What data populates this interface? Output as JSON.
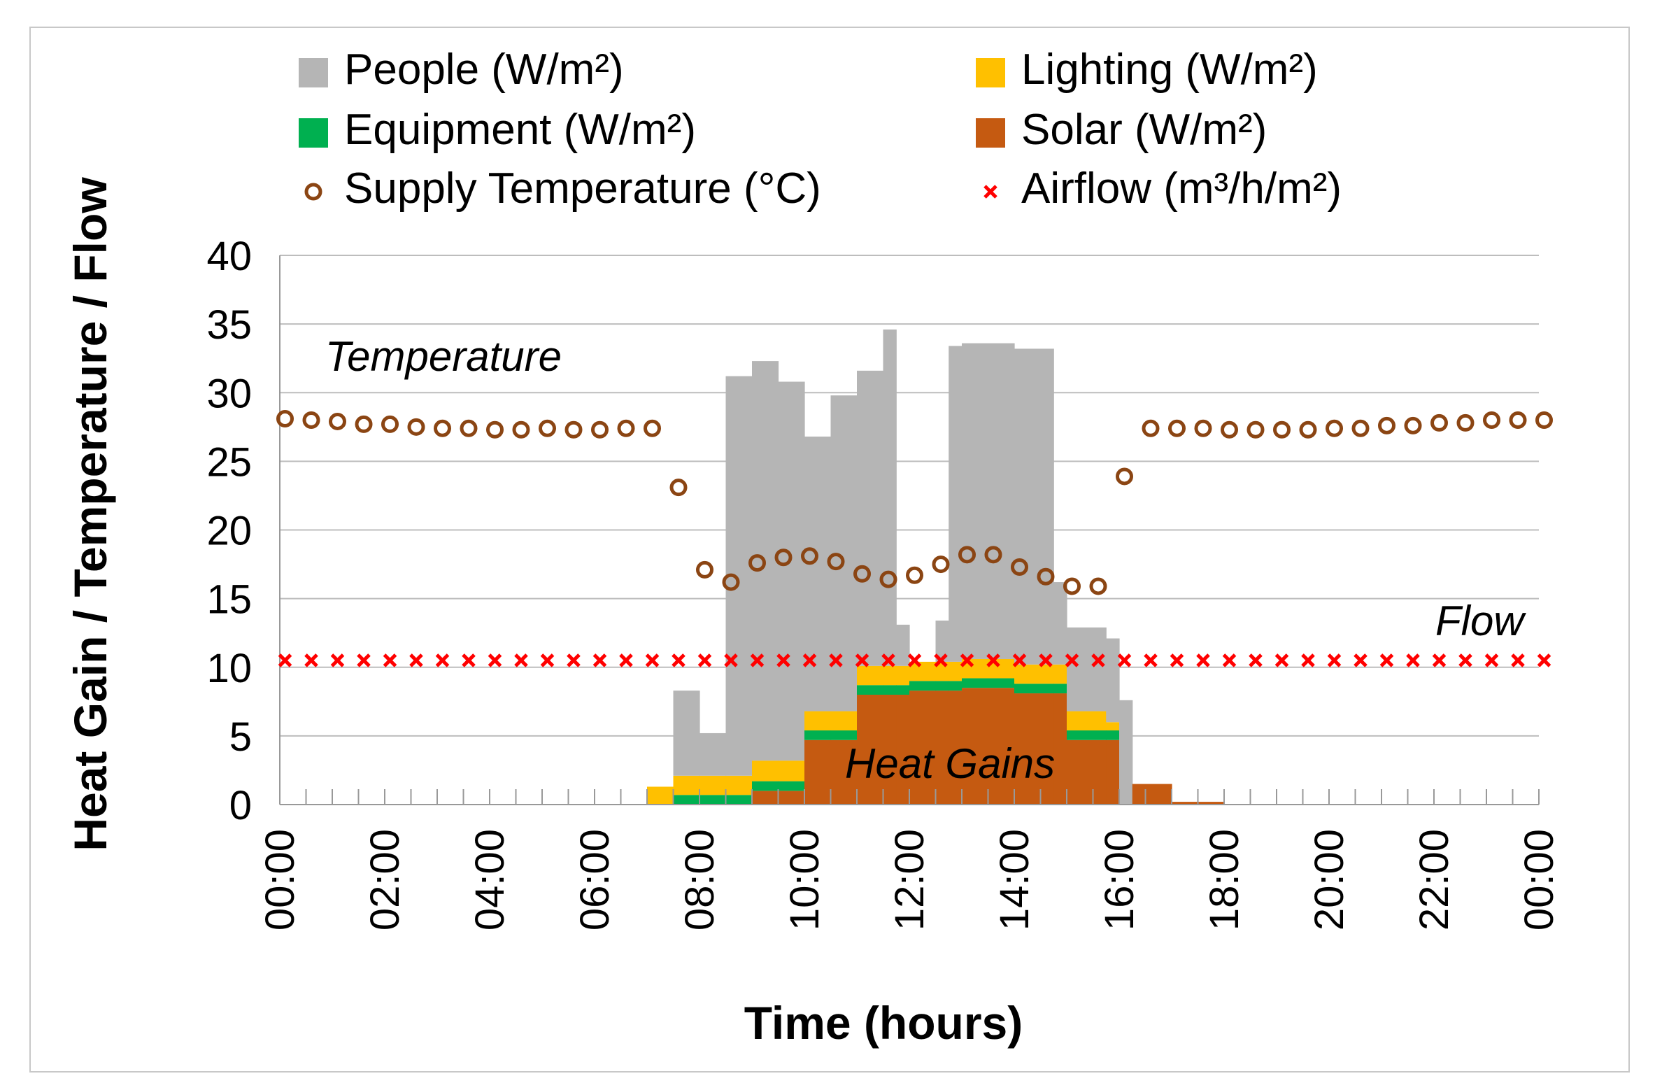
{
  "chart_data": {
    "type": "bar",
    "xlabel": "Time (hours)",
    "ylabel": "Heat Gain / Temperature / Flow",
    "ylim": [
      0,
      40
    ],
    "yticks": [
      "0",
      "5",
      "10",
      "15",
      "20",
      "25",
      "30",
      "35",
      "40"
    ],
    "xlim": [
      0,
      24
    ],
    "xtick_labels": [
      "00:00",
      "02:00",
      "04:00",
      "06:00",
      "08:00",
      "10:00",
      "12:00",
      "14:00",
      "16:00",
      "18:00",
      "20:00",
      "22:00",
      "00:00"
    ],
    "grid": "horizontal",
    "legend_placement": "top",
    "colors": {
      "people": "#b5b5b5",
      "lighting": "#ffc000",
      "equipment": "#00b050",
      "solar": "#c55a11",
      "temperature": "#8b4513",
      "airflow": "#ff0000"
    },
    "legend": [
      {
        "key": "people",
        "label": "People (W/m²)",
        "marker": "square"
      },
      {
        "key": "lighting",
        "label": "Lighting (W/m²)",
        "marker": "square"
      },
      {
        "key": "equipment",
        "label": "Equipment (W/m²)",
        "marker": "square"
      },
      {
        "key": "solar",
        "label": "Solar (W/m²)",
        "marker": "square"
      },
      {
        "key": "temperature",
        "label": "Supply Temperature (°C)",
        "marker": "circle"
      },
      {
        "key": "airflow",
        "label": "Airflow (m³/h/m²)",
        "marker": "cross"
      }
    ],
    "annotations": {
      "temperature": "Temperature",
      "flow": "Flow",
      "gains": "Heat Gains"
    },
    "stacked_bins": [
      {
        "start": 7.0,
        "end": 7.5,
        "solar": 0,
        "equipment": 0,
        "lighting": 1.3,
        "people": 0
      },
      {
        "start": 7.5,
        "end": 8.0,
        "solar": 0,
        "equipment": 0.7,
        "lighting": 1.4,
        "people": 6.2
      },
      {
        "start": 8.0,
        "end": 8.5,
        "solar": 0,
        "equipment": 0.7,
        "lighting": 1.4,
        "people": 3.1
      },
      {
        "start": 8.5,
        "end": 9.0,
        "solar": 0,
        "equipment": 0.7,
        "lighting": 1.4,
        "people": 29.1
      },
      {
        "start": 9.0,
        "end": 9.5,
        "solar": 1.0,
        "equipment": 0.7,
        "lighting": 1.5,
        "people": 29.1
      },
      {
        "start": 9.5,
        "end": 10.0,
        "solar": 1.0,
        "equipment": 0.7,
        "lighting": 1.5,
        "people": 27.6
      },
      {
        "start": 10.0,
        "end": 10.5,
        "solar": 4.7,
        "equipment": 0.7,
        "lighting": 1.4,
        "people": 20.0
      },
      {
        "start": 10.5,
        "end": 11.0,
        "solar": 4.7,
        "equipment": 0.7,
        "lighting": 1.4,
        "people": 23.0
      },
      {
        "start": 11.0,
        "end": 11.5,
        "solar": 8.0,
        "equipment": 0.7,
        "lighting": 1.4,
        "people": 21.5
      },
      {
        "start": 11.5,
        "end": 11.75,
        "solar": 8.0,
        "equipment": 0.7,
        "lighting": 1.4,
        "people": 24.5
      },
      {
        "start": 11.75,
        "end": 12.0,
        "solar": 8.0,
        "equipment": 0.7,
        "lighting": 1.4,
        "people": 3.0
      },
      {
        "start": 12.0,
        "end": 12.5,
        "solar": 8.3,
        "equipment": 0.7,
        "lighting": 1.4,
        "people": 0
      },
      {
        "start": 12.5,
        "end": 12.75,
        "solar": 8.3,
        "equipment": 0.7,
        "lighting": 1.4,
        "people": 3.0
      },
      {
        "start": 12.75,
        "end": 13.0,
        "solar": 8.3,
        "equipment": 0.7,
        "lighting": 1.4,
        "people": 23.0
      },
      {
        "start": 13.0,
        "end": 14.0,
        "solar": 8.5,
        "equipment": 0.7,
        "lighting": 1.4,
        "people": 23.0
      },
      {
        "start": 14.0,
        "end": 14.75,
        "solar": 8.1,
        "equipment": 0.7,
        "lighting": 1.4,
        "people": 23.0
      },
      {
        "start": 14.75,
        "end": 15.0,
        "solar": 8.1,
        "equipment": 0.7,
        "lighting": 1.4,
        "people": 6.0
      },
      {
        "start": 15.0,
        "end": 15.75,
        "solar": 4.7,
        "equipment": 0.7,
        "lighting": 1.4,
        "people": 6.1
      },
      {
        "start": 15.75,
        "end": 16.0,
        "solar": 4.7,
        "equipment": 0.7,
        "lighting": 0.6,
        "people": 6.1
      },
      {
        "start": 16.0,
        "end": 16.25,
        "solar": 0,
        "equipment": 0,
        "lighting": 0,
        "people": 7.6
      },
      {
        "start": 16.25,
        "end": 17.0,
        "solar": 1.5,
        "equipment": 0,
        "lighting": 0,
        "people": 0
      },
      {
        "start": 17.0,
        "end": 18.0,
        "solar": 0.2,
        "equipment": 0,
        "lighting": 0,
        "people": 0
      }
    ],
    "temperature_points": [
      {
        "x": 0.1,
        "y": 28.1
      },
      {
        "x": 0.6,
        "y": 28.0
      },
      {
        "x": 1.1,
        "y": 27.9
      },
      {
        "x": 1.6,
        "y": 27.7
      },
      {
        "x": 2.1,
        "y": 27.7
      },
      {
        "x": 2.6,
        "y": 27.5
      },
      {
        "x": 3.1,
        "y": 27.4
      },
      {
        "x": 3.6,
        "y": 27.4
      },
      {
        "x": 4.1,
        "y": 27.3
      },
      {
        "x": 4.6,
        "y": 27.3
      },
      {
        "x": 5.1,
        "y": 27.4
      },
      {
        "x": 5.6,
        "y": 27.3
      },
      {
        "x": 6.1,
        "y": 27.3
      },
      {
        "x": 6.6,
        "y": 27.4
      },
      {
        "x": 7.1,
        "y": 27.4
      },
      {
        "x": 7.6,
        "y": 23.1
      },
      {
        "x": 8.1,
        "y": 17.1
      },
      {
        "x": 8.6,
        "y": 16.2
      },
      {
        "x": 9.1,
        "y": 17.6
      },
      {
        "x": 9.6,
        "y": 18.0
      },
      {
        "x": 10.1,
        "y": 18.1
      },
      {
        "x": 10.6,
        "y": 17.7
      },
      {
        "x": 11.1,
        "y": 16.8
      },
      {
        "x": 11.6,
        "y": 16.4
      },
      {
        "x": 12.1,
        "y": 16.7
      },
      {
        "x": 12.6,
        "y": 17.5
      },
      {
        "x": 13.1,
        "y": 18.2
      },
      {
        "x": 13.6,
        "y": 18.2
      },
      {
        "x": 14.1,
        "y": 17.3
      },
      {
        "x": 14.6,
        "y": 16.6
      },
      {
        "x": 15.1,
        "y": 15.9
      },
      {
        "x": 15.6,
        "y": 15.9
      },
      {
        "x": 16.1,
        "y": 23.9
      },
      {
        "x": 16.6,
        "y": 27.4
      },
      {
        "x": 17.1,
        "y": 27.4
      },
      {
        "x": 17.6,
        "y": 27.4
      },
      {
        "x": 18.1,
        "y": 27.3
      },
      {
        "x": 18.6,
        "y": 27.3
      },
      {
        "x": 19.1,
        "y": 27.3
      },
      {
        "x": 19.6,
        "y": 27.3
      },
      {
        "x": 20.1,
        "y": 27.4
      },
      {
        "x": 20.6,
        "y": 27.4
      },
      {
        "x": 21.1,
        "y": 27.6
      },
      {
        "x": 21.6,
        "y": 27.6
      },
      {
        "x": 22.1,
        "y": 27.8
      },
      {
        "x": 22.6,
        "y": 27.8
      },
      {
        "x": 23.1,
        "y": 28.0
      },
      {
        "x": 23.6,
        "y": 28.0
      },
      {
        "x": 24.1,
        "y": 28.0
      }
    ],
    "airflow": {
      "value": 10.5,
      "x_start": 0.1,
      "x_step": 0.5,
      "count": 49
    }
  }
}
